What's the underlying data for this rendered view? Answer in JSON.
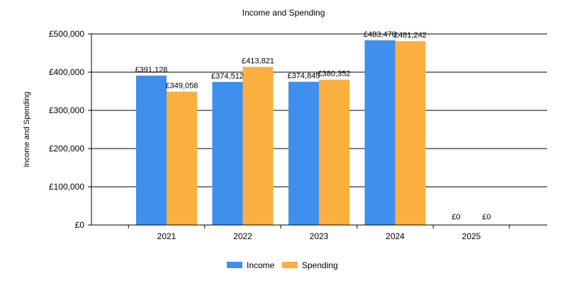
{
  "chart_data": {
    "type": "bar",
    "title": "Income and Spending",
    "xlabel": "",
    "ylabel": "Income and Spending",
    "categories": [
      "2021",
      "2022",
      "2023",
      "2024",
      "2025"
    ],
    "series": [
      {
        "name": "Income",
        "color": "#3f8fef",
        "values": [
          391128,
          374512,
          374845,
          483478,
          0
        ],
        "labels": [
          "£391,128",
          "£374,512",
          "£374,845",
          "£483,478",
          "£0"
        ]
      },
      {
        "name": "Spending",
        "color": "#fbb03f",
        "values": [
          349058,
          413821,
          380352,
          481242,
          0
        ],
        "labels": [
          "£349,058",
          "£413,821",
          "£380,352",
          "£481,242",
          "£0"
        ]
      }
    ],
    "ylim": [
      0,
      500000
    ],
    "yticks": [
      0,
      100000,
      200000,
      300000,
      400000,
      500000
    ],
    "ytick_labels": [
      "£0",
      "£100,000",
      "£200,000",
      "£300,000",
      "£400,000",
      "£500,000"
    ],
    "grid": true,
    "legend": "bottom-center"
  }
}
